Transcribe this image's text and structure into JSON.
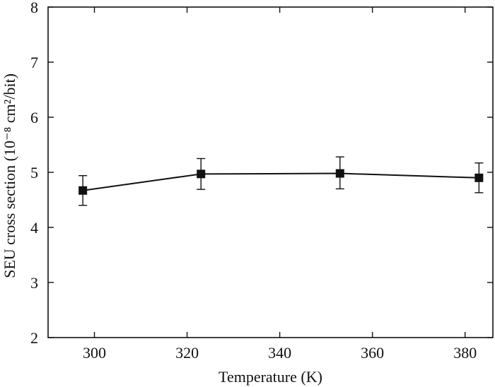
{
  "chart_data": {
    "type": "line",
    "title": "",
    "xlabel": "Temperature (K)",
    "ylabel": "SEU cross section (10⁻⁸ cm²/bit)",
    "xlim": [
      290,
      386
    ],
    "ylim": [
      2,
      8
    ],
    "x_ticks": [
      300,
      320,
      340,
      360,
      380
    ],
    "y_ticks": [
      2,
      3,
      4,
      5,
      6,
      7,
      8
    ],
    "grid": false,
    "legend": "none",
    "series": [
      {
        "color": "#111111",
        "marker": "square",
        "points": [
          {
            "x": 297.5,
            "y": 4.67,
            "err_low": 0.27,
            "err_high": 0.27
          },
          {
            "x": 323,
            "y": 4.97,
            "err_low": 0.28,
            "err_high": 0.28
          },
          {
            "x": 353,
            "y": 4.98,
            "err_low": 0.28,
            "err_high": 0.3
          },
          {
            "x": 383,
            "y": 4.9,
            "err_low": 0.27,
            "err_high": 0.27
          }
        ]
      }
    ]
  }
}
